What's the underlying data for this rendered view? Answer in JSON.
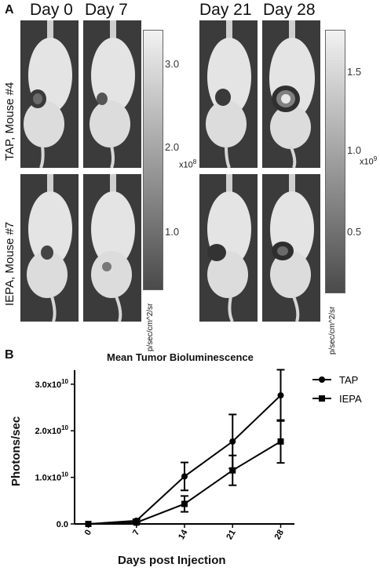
{
  "panel_a": {
    "letter": "A",
    "days": [
      "Day 0",
      "Day 7",
      "Day 21",
      "Day 28"
    ],
    "rows": [
      "TAP, Mouse #4",
      "IEPA, Mouse #7"
    ],
    "colorbars": [
      {
        "ticks": [
          "3.0",
          "2.0",
          "1.0"
        ],
        "exponent_base": "x10",
        "exponent_power": "8",
        "unit": "p/sec/cm^2/sr"
      },
      {
        "ticks": [
          "1.5",
          "1.0",
          "0.5"
        ],
        "exponent_base": "x10",
        "exponent_power": "9",
        "unit": "p/sec/cm^2/sr"
      }
    ]
  },
  "panel_b": {
    "letter": "B"
  },
  "chart_data": {
    "type": "line",
    "title": "Mean Tumor Bioluminescence",
    "xlabel": "Days post Injection",
    "ylabel": "Photons/sec",
    "x": [
      0,
      7,
      14,
      21,
      28
    ],
    "xticks": [
      "0",
      "7",
      "14",
      "21",
      "28"
    ],
    "yticks": [
      {
        "value": 0,
        "label": "0.0",
        "exp": ""
      },
      {
        "value": 1.0,
        "label": "1.0x10",
        "exp": "10"
      },
      {
        "value": 2.0,
        "label": "2.0x10",
        "exp": "10"
      },
      {
        "value": 3.0,
        "label": "3.0x10",
        "exp": "10"
      }
    ],
    "y_unit_multiplier": "1e10",
    "ylim": [
      0,
      3.3
    ],
    "legend_position": "top-right",
    "series": [
      {
        "name": "TAP",
        "marker": "circle",
        "values": [
          0.0,
          0.07,
          1.02,
          1.77,
          2.76
        ],
        "err": [
          0.0,
          0.03,
          0.3,
          0.58,
          0.55
        ]
      },
      {
        "name": "IEPA",
        "marker": "square",
        "values": [
          0.0,
          0.03,
          0.43,
          1.15,
          1.77
        ],
        "err": [
          0.0,
          0.02,
          0.17,
          0.32,
          0.46
        ]
      }
    ]
  }
}
